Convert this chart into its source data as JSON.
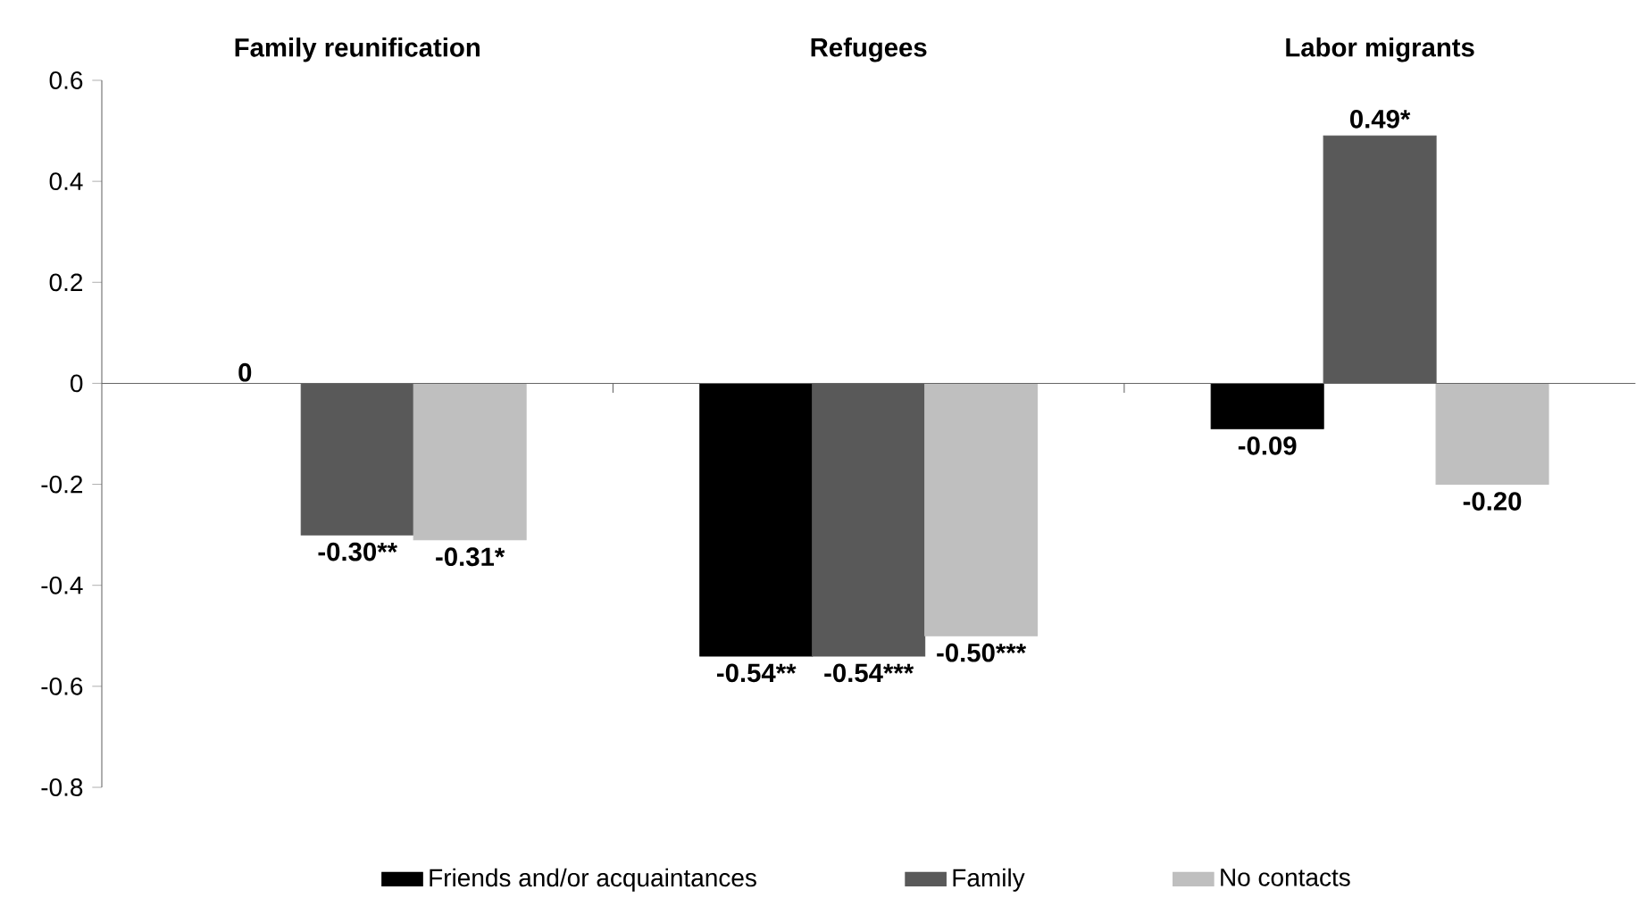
{
  "chart_data": {
    "type": "bar",
    "categories": [
      "Family reunification",
      "Refugees",
      "Labor migrants"
    ],
    "series": [
      {
        "name": "Friends and/or acquaintances",
        "color": "#000000",
        "values": [
          0,
          -0.54,
          -0.09
        ],
        "value_labels": [
          "0",
          "-0.54**",
          "-0.09"
        ]
      },
      {
        "name": "Family",
        "color": "#595959",
        "values": [
          -0.3,
          -0.54,
          0.49
        ],
        "value_labels": [
          "-0.30**",
          "-0.54***",
          "0.49*"
        ]
      },
      {
        "name": "No contacts",
        "color": "#bfbfbf",
        "values": [
          -0.31,
          -0.5,
          -0.2
        ],
        "value_labels": [
          "-0.31*",
          "-0.50***",
          "-0.20"
        ]
      }
    ],
    "ylim": [
      -0.8,
      0.6
    ],
    "yticks": [
      -0.8,
      -0.6,
      -0.4,
      -0.2,
      0,
      0.2,
      0.4,
      0.6
    ],
    "legend": "bottom"
  }
}
